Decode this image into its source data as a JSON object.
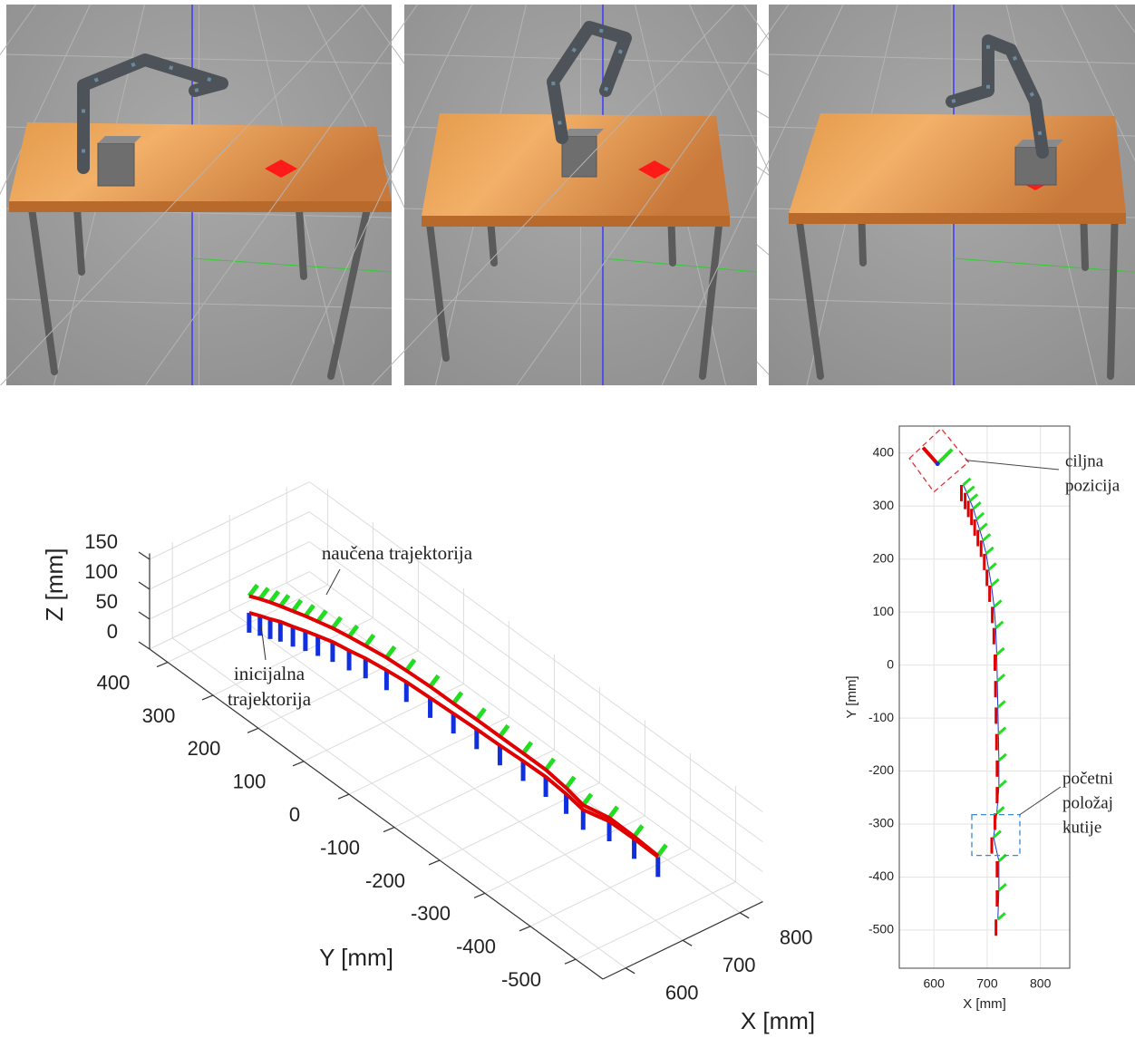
{
  "chart_data": [
    {
      "type": "line3d",
      "xlabel": "X [mm]",
      "ylabel": "Y [mm]",
      "zlabel": "Z [mm]",
      "xlim": [
        560,
        840
      ],
      "ylim": [
        -560,
        440
      ],
      "zlim": [
        0,
        160
      ],
      "xticks": [
        600,
        700,
        800
      ],
      "yticks": [
        -500,
        -400,
        -300,
        -200,
        -100,
        0,
        100,
        200,
        300,
        400
      ],
      "zticks": [
        0,
        50,
        100,
        150
      ],
      "grid": true,
      "series": [
        {
          "color": "#e00000",
          "frame_color": "#22dd22",
          "x": [
            720,
            722,
            722,
            712,
            718,
            722,
            722,
            721,
            720,
            719,
            718,
            716,
            713,
            708,
            703,
            698,
            692,
            686,
            680,
            674,
            668,
            662,
            655
          ],
          "y": [
            -480,
            -425,
            -370,
            -325,
            -280,
            -230,
            -180,
            -130,
            -80,
            -30,
            20,
            70,
            110,
            150,
            180,
            210,
            235,
            255,
            275,
            295,
            310,
            325,
            340
          ],
          "z": [
            88,
            89,
            90,
            91,
            92,
            93,
            93,
            94,
            95,
            95,
            96,
            96,
            97,
            97,
            98,
            98,
            98,
            99,
            99,
            99,
            100,
            100,
            100
          ]
        },
        {
          "color": "#e00000",
          "frame_color": "#1030e0",
          "x": [
            720,
            722,
            722,
            712,
            718,
            722,
            722,
            721,
            720,
            719,
            718,
            716,
            713,
            708,
            703,
            698,
            692,
            686,
            680,
            674,
            668,
            662,
            655
          ],
          "y": [
            -480,
            -425,
            -370,
            -325,
            -280,
            -230,
            -180,
            -130,
            -80,
            -30,
            20,
            70,
            110,
            150,
            180,
            210,
            235,
            255,
            275,
            295,
            310,
            325,
            340
          ],
          "z": [
            86,
            85,
            84,
            83,
            82,
            81,
            80,
            79,
            79,
            78,
            77,
            77,
            76,
            76,
            75,
            75,
            74,
            74,
            73,
            73,
            72,
            72,
            72
          ]
        }
      ],
      "annotations": [
        {
          "lines": [
            "naučena trajektorija"
          ]
        },
        {
          "lines": [
            "inicijalna",
            "trajektorija"
          ]
        }
      ]
    },
    {
      "type": "line",
      "xlabel": "X [mm]",
      "ylabel": "Y [mm]",
      "xlim": [
        535,
        855
      ],
      "ylim": [
        -572,
        451
      ],
      "xticks": [
        600,
        700,
        800
      ],
      "yticks": [
        -500,
        -400,
        -300,
        -200,
        -100,
        0,
        100,
        200,
        300,
        400
      ],
      "grid": true,
      "series": [
        {
          "color": "#e00000",
          "frame_color": "#22dd22",
          "x": [
            720,
            722,
            722,
            712,
            718,
            722,
            722,
            721,
            720,
            719,
            718,
            716,
            713,
            708,
            703,
            698,
            692,
            686,
            680,
            674,
            668,
            662,
            655
          ],
          "y": [
            -480,
            -425,
            -370,
            -325,
            -280,
            -230,
            -180,
            -130,
            -80,
            -30,
            20,
            70,
            110,
            150,
            180,
            210,
            235,
            255,
            275,
            295,
            310,
            325,
            340
          ]
        }
      ],
      "goal": [
        600,
        390
      ],
      "annotations": [
        {
          "lines": [
            "ciljna",
            "pozicija"
          ]
        },
        {
          "lines": [
            "početni",
            "položaj",
            "kutije"
          ]
        }
      ]
    }
  ]
}
